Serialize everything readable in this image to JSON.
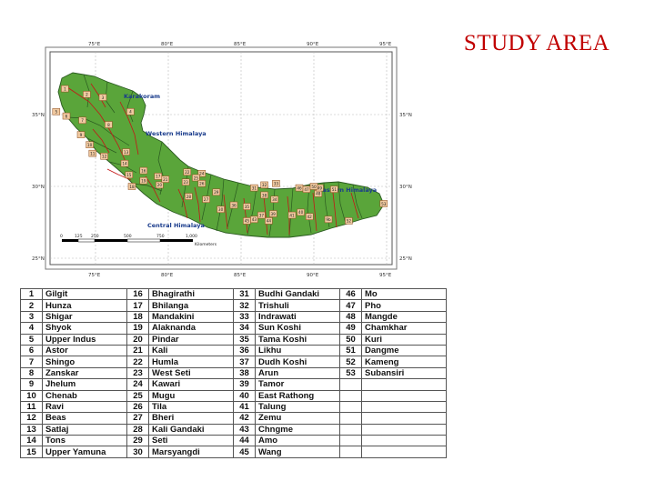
{
  "slide": {
    "title": "STUDY AREA"
  },
  "map": {
    "lon_labels": [
      "75°E",
      "80°E",
      "85°E",
      "90°E",
      "95°E"
    ],
    "lat_labels": [
      "35°N",
      "30°N",
      "25°N"
    ],
    "regions": [
      "Karakoram",
      "Western Himalaya",
      "Central Himalaya",
      "Eastern Himalaya"
    ],
    "scale_ticks": [
      "0",
      "125",
      "250",
      "500",
      "750",
      "1,000"
    ],
    "scale_unit": "Kilometers",
    "colors": {
      "land": "#5aa53a",
      "boundary": "#2a5a20",
      "river": "#c41616",
      "label_box": "#f0c9a0",
      "region_text": "#1a3c8c"
    },
    "basin_markers": [
      {
        "n": "1",
        "lon": 72.9,
        "lat": 36.8
      },
      {
        "n": "2",
        "lon": 74.4,
        "lat": 36.4
      },
      {
        "n": "3",
        "lon": 75.5,
        "lat": 36.2
      },
      {
        "n": "4",
        "lon": 77.4,
        "lat": 35.2
      },
      {
        "n": "5",
        "lon": 72.3,
        "lat": 35.2
      },
      {
        "n": "6",
        "lon": 73.0,
        "lat": 34.9
      },
      {
        "n": "7",
        "lon": 74.1,
        "lat": 34.6
      },
      {
        "n": "8",
        "lon": 75.9,
        "lat": 34.3
      },
      {
        "n": "9",
        "lon": 74.0,
        "lat": 33.6
      },
      {
        "n": "10",
        "lon": 74.6,
        "lat": 32.9
      },
      {
        "n": "11",
        "lon": 74.8,
        "lat": 32.3
      },
      {
        "n": "12",
        "lon": 75.6,
        "lat": 32.1
      },
      {
        "n": "13",
        "lon": 77.1,
        "lat": 32.4
      },
      {
        "n": "14",
        "lon": 77.0,
        "lat": 31.6
      },
      {
        "n": "15",
        "lon": 77.3,
        "lat": 30.8
      },
      {
        "n": "16",
        "lon": 78.3,
        "lat": 31.1
      },
      {
        "n": "17",
        "lon": 79.3,
        "lat": 30.7
      },
      {
        "n": "18",
        "lon": 77.5,
        "lat": 30.0
      },
      {
        "n": "19",
        "lon": 78.3,
        "lat": 30.4
      },
      {
        "n": "20",
        "lon": 79.4,
        "lat": 30.1
      },
      {
        "n": "21",
        "lon": 79.8,
        "lat": 30.5
      },
      {
        "n": "22",
        "lon": 81.3,
        "lat": 31.0
      },
      {
        "n": "23",
        "lon": 81.2,
        "lat": 30.3
      },
      {
        "n": "24",
        "lon": 82.3,
        "lat": 30.9
      },
      {
        "n": "25",
        "lon": 81.9,
        "lat": 30.6
      },
      {
        "n": "26",
        "lon": 82.3,
        "lat": 30.2
      },
      {
        "n": "27",
        "lon": 82.6,
        "lat": 29.1
      },
      {
        "n": "28",
        "lon": 81.4,
        "lat": 29.3
      },
      {
        "n": "29",
        "lon": 83.3,
        "lat": 29.6
      },
      {
        "n": "30",
        "lon": 83.6,
        "lat": 28.4
      },
      {
        "n": "31",
        "lon": 85.9,
        "lat": 29.9
      },
      {
        "n": "32",
        "lon": 86.6,
        "lat": 30.1
      },
      {
        "n": "33",
        "lon": 87.4,
        "lat": 30.2
      },
      {
        "n": "34",
        "lon": 87.3,
        "lat": 29.1
      },
      {
        "n": "35",
        "lon": 85.4,
        "lat": 28.6
      },
      {
        "n": "36",
        "lon": 84.5,
        "lat": 28.7
      },
      {
        "n": "37",
        "lon": 86.4,
        "lat": 28.0
      },
      {
        "n": "38",
        "lon": 86.6,
        "lat": 29.4
      },
      {
        "n": "39",
        "lon": 87.2,
        "lat": 28.1
      },
      {
        "n": "40",
        "lon": 89.1,
        "lat": 28.2
      },
      {
        "n": "41",
        "lon": 88.5,
        "lat": 28.0
      },
      {
        "n": "42",
        "lon": 89.7,
        "lat": 27.9
      },
      {
        "n": "43",
        "lon": 85.9,
        "lat": 27.7
      },
      {
        "n": "44",
        "lon": 86.9,
        "lat": 27.6
      },
      {
        "n": "45",
        "lon": 85.4,
        "lat": 27.6
      },
      {
        "n": "46",
        "lon": 89.0,
        "lat": 29.9
      },
      {
        "n": "47",
        "lon": 89.5,
        "lat": 29.8
      },
      {
        "n": "48",
        "lon": 90.3,
        "lat": 29.5
      },
      {
        "n": "49",
        "lon": 90.4,
        "lat": 29.9
      },
      {
        "n": "50",
        "lon": 90.0,
        "lat": 30.0
      },
      {
        "n": "51",
        "lon": 91.4,
        "lat": 29.8
      },
      {
        "n": "52",
        "lon": 92.4,
        "lat": 27.6
      },
      {
        "n": "53",
        "lon": 94.8,
        "lat": 28.8
      },
      {
        "n": "9b",
        "lon": 91.0,
        "lat": 27.7
      }
    ]
  },
  "basins_table": [
    [
      {
        "n": "1",
        "name": "Gilgit"
      },
      {
        "n": "16",
        "name": "Bhagirathi"
      },
      {
        "n": "31",
        "name": "Budhi Gandaki"
      },
      {
        "n": "46",
        "name": "Mo"
      }
    ],
    [
      {
        "n": "2",
        "name": "Hunza"
      },
      {
        "n": "17",
        "name": "Bhilanga"
      },
      {
        "n": "32",
        "name": "Trishuli"
      },
      {
        "n": "47",
        "name": "Pho"
      }
    ],
    [
      {
        "n": "3",
        "name": "Shigar"
      },
      {
        "n": "18",
        "name": "Mandakini"
      },
      {
        "n": "33",
        "name": "Indrawati"
      },
      {
        "n": "48",
        "name": "Mangde"
      }
    ],
    [
      {
        "n": "4",
        "name": "Shyok"
      },
      {
        "n": "19",
        "name": "Alaknanda"
      },
      {
        "n": "34",
        "name": "Sun Koshi"
      },
      {
        "n": "49",
        "name": "Chamkhar"
      }
    ],
    [
      {
        "n": "5",
        "name": "Upper Indus"
      },
      {
        "n": "20",
        "name": "Pindar"
      },
      {
        "n": "35",
        "name": "Tama Koshi"
      },
      {
        "n": "50",
        "name": "Kuri"
      }
    ],
    [
      {
        "n": "6",
        "name": "Astor"
      },
      {
        "n": "21",
        "name": "Kali"
      },
      {
        "n": "36",
        "name": "Likhu"
      },
      {
        "n": "51",
        "name": "Dangme"
      }
    ],
    [
      {
        "n": "7",
        "name": "Shingo"
      },
      {
        "n": "22",
        "name": "Humla"
      },
      {
        "n": "37",
        "name": "Dudh Koshi"
      },
      {
        "n": "52",
        "name": "Kameng"
      }
    ],
    [
      {
        "n": "8",
        "name": "Zanskar"
      },
      {
        "n": "23",
        "name": "West Seti"
      },
      {
        "n": "38",
        "name": "Arun"
      },
      {
        "n": "53",
        "name": "Subansiri"
      }
    ],
    [
      {
        "n": "9",
        "name": "Jhelum"
      },
      {
        "n": "24",
        "name": "Kawari"
      },
      {
        "n": "39",
        "name": "Tamor"
      },
      {
        "n": "",
        "name": ""
      }
    ],
    [
      {
        "n": "10",
        "name": "Chenab"
      },
      {
        "n": "25",
        "name": "Mugu"
      },
      {
        "n": "40",
        "name": "East Rathong"
      },
      {
        "n": "",
        "name": ""
      }
    ],
    [
      {
        "n": "11",
        "name": "Ravi"
      },
      {
        "n": "26",
        "name": "Tila"
      },
      {
        "n": "41",
        "name": "Talung"
      },
      {
        "n": "",
        "name": ""
      }
    ],
    [
      {
        "n": "12",
        "name": "Beas"
      },
      {
        "n": "27",
        "name": "Bheri"
      },
      {
        "n": "42",
        "name": "Zemu"
      },
      {
        "n": "",
        "name": ""
      }
    ],
    [
      {
        "n": "13",
        "name": "Satlaj"
      },
      {
        "n": "28",
        "name": "Kali Gandaki"
      },
      {
        "n": "43",
        "name": "Chngme"
      },
      {
        "n": "",
        "name": ""
      }
    ],
    [
      {
        "n": "14",
        "name": "Tons"
      },
      {
        "n": "29",
        "name": "Seti"
      },
      {
        "n": "44",
        "name": "Amo"
      },
      {
        "n": "",
        "name": ""
      }
    ],
    [
      {
        "n": "15",
        "name": "Upper Yamuna"
      },
      {
        "n": "30",
        "name": "Marsyangdi"
      },
      {
        "n": "45",
        "name": "Wang"
      },
      {
        "n": "",
        "name": ""
      }
    ]
  ]
}
